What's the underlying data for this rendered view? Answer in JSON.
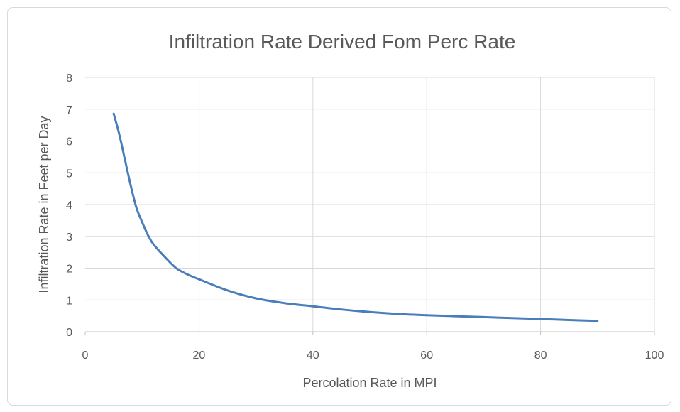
{
  "chart_data": {
    "type": "line",
    "title": "Infiltration Rate Derived Fom Perc Rate",
    "xlabel": "Percolation Rate in MPI",
    "ylabel": "Infiltration Rate in Feet per Day",
    "xlim": [
      0,
      100
    ],
    "ylim": [
      0,
      8
    ],
    "x_ticks": [
      "0",
      "20",
      "40",
      "60",
      "80",
      "100"
    ],
    "y_ticks": [
      "0",
      "1",
      "2",
      "3",
      "4",
      "5",
      "6",
      "7",
      "8"
    ],
    "grid": true,
    "legend": "none",
    "series": [
      {
        "color": "#4a7ebb",
        "x": [
          5,
          6,
          7,
          8,
          9,
          10,
          11,
          12,
          14,
          16,
          18,
          20,
          25,
          30,
          35,
          40,
          45,
          50,
          55,
          60,
          65,
          70,
          75,
          80,
          85,
          90
        ],
        "y": [
          6.86,
          6.2,
          5.4,
          4.6,
          3.9,
          3.45,
          3.05,
          2.75,
          2.35,
          2.0,
          1.8,
          1.65,
          1.3,
          1.05,
          0.9,
          0.8,
          0.7,
          0.62,
          0.56,
          0.52,
          0.49,
          0.46,
          0.43,
          0.4,
          0.37,
          0.34
        ]
      }
    ]
  }
}
